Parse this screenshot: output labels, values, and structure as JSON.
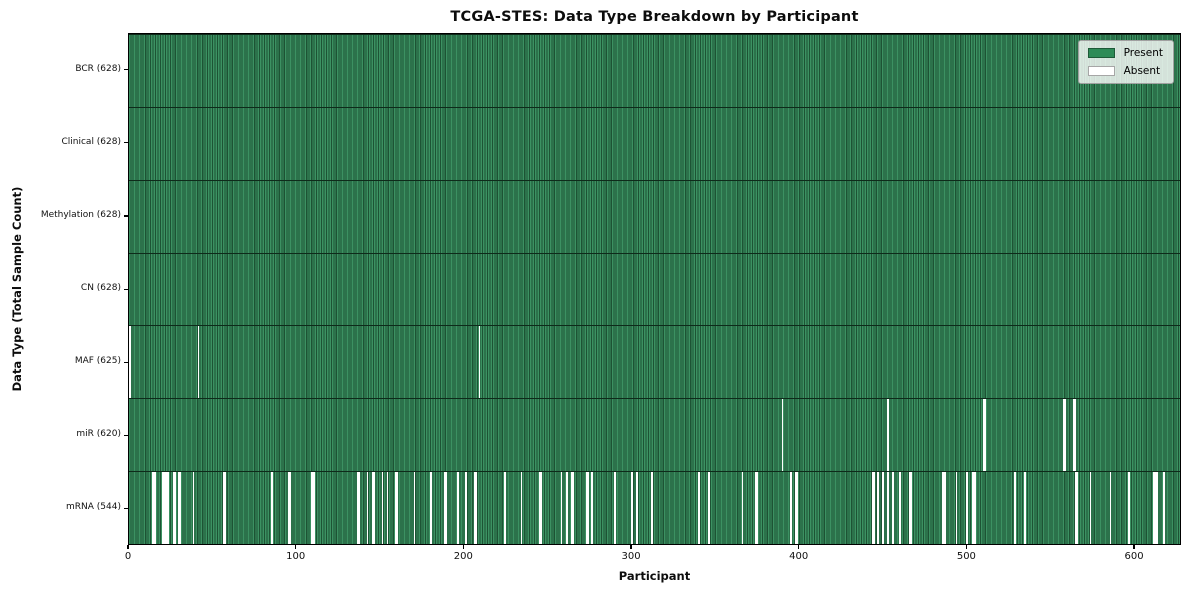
{
  "title": "TCGA-STES: Data Type Breakdown by Participant",
  "legend": {
    "entries": [
      {
        "label": "Present",
        "color": "#2e8b57"
      },
      {
        "label": "Absent",
        "color": "#ffffff"
      }
    ]
  },
  "chart_data": {
    "type": "heatmap",
    "title": "TCGA-STES: Data Type Breakdown by Participant",
    "xlabel": "Participant",
    "ylabel": "Data Type (Total Sample Count)",
    "x_range": [
      0,
      628
    ],
    "x_ticks": [
      0,
      100,
      200,
      300,
      400,
      500,
      600
    ],
    "n_participants": 628,
    "grid": false,
    "legend_position": "upper right",
    "colors": {
      "present": "#2e8b57",
      "absent": "#ffffff"
    },
    "rows": [
      {
        "name": "bcr",
        "label": "BCR (628)",
        "data_type": "BCR",
        "present_count": 628,
        "absent_count": 0,
        "absent_participants": []
      },
      {
        "name": "clinical",
        "label": "Clinical (628)",
        "data_type": "Clinical",
        "present_count": 628,
        "absent_count": 0,
        "absent_participants": []
      },
      {
        "name": "methylation",
        "label": "Methylation (628)",
        "data_type": "Methylation",
        "present_count": 628,
        "absent_count": 0,
        "absent_participants": []
      },
      {
        "name": "cn",
        "label": "CN (628)",
        "data_type": "CN",
        "present_count": 628,
        "absent_count": 0,
        "absent_participants": []
      },
      {
        "name": "maf",
        "label": "MAF (625)",
        "data_type": "MAF",
        "present_count": 625,
        "absent_count": 3,
        "absent_participants": [
          0,
          41,
          209
        ]
      },
      {
        "name": "mir",
        "label": "miR (620)",
        "data_type": "miR",
        "present_count": 620,
        "absent_count": 8,
        "absent_participants": [
          390,
          453,
          510,
          511,
          558,
          559,
          564,
          565
        ]
      },
      {
        "name": "mrna",
        "label": "mRNA (544)",
        "data_type": "mRNA",
        "present_count": 544,
        "absent_count": 84,
        "absent_participants": [
          14,
          15,
          20,
          21,
          22,
          23,
          26,
          27,
          29,
          30,
          38,
          56,
          57,
          85,
          95,
          96,
          109,
          110,
          136,
          137,
          142,
          145,
          146,
          151,
          154,
          159,
          160,
          170,
          180,
          188,
          189,
          196,
          201,
          206,
          207,
          224,
          234,
          245,
          246,
          258,
          261,
          264,
          265,
          273,
          274,
          276,
          290,
          300,
          303,
          312,
          340,
          346,
          366,
          374,
          375,
          395,
          398,
          399,
          444,
          445,
          447,
          450,
          453,
          456,
          460,
          466,
          467,
          486,
          487,
          494,
          500,
          504,
          505,
          529,
          535,
          565,
          566,
          574,
          586,
          597,
          612,
          613,
          614,
          618
        ]
      }
    ]
  }
}
